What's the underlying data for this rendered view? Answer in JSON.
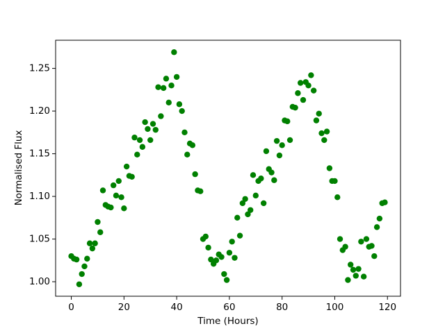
{
  "chart_data": {
    "type": "scatter",
    "xlabel": "Time (Hours)",
    "ylabel": "Normalised Flux",
    "color": "#008000",
    "x": [
      0,
      1,
      2,
      3,
      4,
      5,
      6,
      7,
      8,
      9,
      10,
      11,
      12,
      13,
      14,
      15,
      16,
      17,
      18,
      19,
      20,
      21,
      22,
      23,
      24,
      25,
      26,
      27,
      28,
      29,
      30,
      31,
      32,
      33,
      34,
      35,
      36,
      37,
      38,
      39,
      40,
      41,
      42,
      43,
      44,
      45,
      46,
      47,
      48,
      49,
      50,
      51,
      52,
      53,
      54,
      55,
      56,
      57,
      58,
      59,
      60,
      61,
      62,
      63,
      64,
      65,
      66,
      67,
      68,
      69,
      70,
      71,
      72,
      73,
      74,
      75,
      76,
      77,
      78,
      79,
      80,
      81,
      82,
      83,
      84,
      85,
      86,
      87,
      88,
      89,
      90,
      91,
      92,
      93,
      94,
      95,
      96,
      97,
      98,
      99,
      100,
      101,
      102,
      103,
      104,
      105,
      106,
      107,
      108,
      109,
      110,
      111,
      112,
      113,
      114,
      115,
      116,
      117,
      118,
      119
    ],
    "values": [
      1.03,
      1.027,
      1.026,
      0.997,
      1.009,
      1.018,
      1.027,
      1.045,
      1.039,
      1.045,
      1.07,
      1.058,
      1.107,
      1.09,
      1.088,
      1.087,
      1.113,
      1.101,
      1.118,
      1.099,
      1.086,
      1.135,
      1.124,
      1.123,
      1.169,
      1.149,
      1.166,
      1.158,
      1.187,
      1.179,
      1.166,
      1.185,
      1.178,
      1.228,
      1.194,
      1.227,
      1.238,
      1.21,
      1.23,
      1.269,
      1.24,
      1.208,
      1.2,
      1.175,
      1.149,
      1.162,
      1.16,
      1.126,
      1.107,
      1.106,
      1.05,
      1.053,
      1.04,
      1.026,
      1.021,
      1.025,
      1.032,
      1.029,
      1.009,
      1.002,
      1.034,
      1.047,
      1.028,
      1.075,
      1.054,
      1.092,
      1.097,
      1.079,
      1.084,
      1.125,
      1.101,
      1.118,
      1.121,
      1.092,
      1.153,
      1.132,
      1.128,
      1.119,
      1.165,
      1.148,
      1.16,
      1.189,
      1.188,
      1.166,
      1.205,
      1.204,
      1.221,
      1.233,
      1.213,
      1.234,
      1.23,
      1.242,
      1.224,
      1.189,
      1.197,
      1.174,
      1.166,
      1.176,
      1.133,
      1.118,
      1.118,
      1.099,
      1.05,
      1.037,
      1.041,
      1.002,
      1.02,
      1.014,
      1.007,
      1.015,
      1.047,
      1.006,
      1.05,
      1.041,
      1.042,
      1.03,
      1.064,
      1.074,
      1.092,
      1.093
    ],
    "xlim": [
      -5.95,
      124.95
    ],
    "xticks": [
      0,
      20,
      40,
      60,
      80,
      100,
      120
    ],
    "ylim": [
      0.983,
      1.283
    ],
    "yticks": [
      {
        "value": 1.0,
        "label": "1.00"
      },
      1.05,
      {
        "value": 1.1,
        "label": "1.10"
      },
      1.15,
      {
        "value": 1.2,
        "label": "1.20"
      },
      1.25
    ]
  }
}
